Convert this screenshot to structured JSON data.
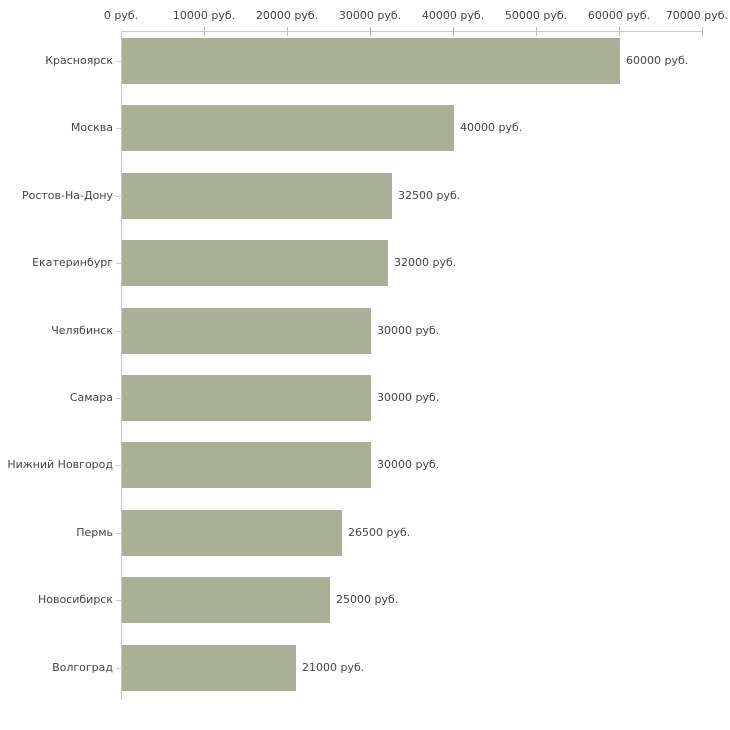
{
  "chart_data": {
    "type": "bar",
    "orientation": "horizontal",
    "title": "",
    "categories": [
      "Красноярск",
      "Москва",
      "Ростов-На-Дону",
      "Екатеринбург",
      "Челябинск",
      "Самара",
      "Нижний Новгород",
      "Пермь",
      "Новосибирск",
      "Волгоград"
    ],
    "values": [
      60000,
      40000,
      32500,
      32000,
      30000,
      30000,
      30000,
      26500,
      25000,
      21000
    ],
    "value_labels": [
      "60000 руб.",
      "40000 руб.",
      "32500 руб.",
      "32000 руб.",
      "30000 руб.",
      "30000 руб.",
      "30000 руб.",
      "26500 руб.",
      "25000 руб.",
      "21000 руб."
    ],
    "x_axis": {
      "position": "top",
      "range": [
        0,
        70000
      ],
      "ticks": [
        0,
        10000,
        20000,
        30000,
        40000,
        50000,
        60000,
        70000
      ],
      "tick_labels": [
        "0 руб.",
        "10000 руб.",
        "20000 руб.",
        "30000 руб.",
        "40000 руб.",
        "50000 руб.",
        "60000 руб.",
        "70000 руб."
      ]
    },
    "unit": "руб.",
    "grid": false,
    "legend": null,
    "colors": {
      "bar": "#a9b096",
      "axis_line": "#c9c9c9",
      "x_tick": "#bfbf9f",
      "y_tick": "#cfcfc0",
      "text": "#454545"
    }
  }
}
